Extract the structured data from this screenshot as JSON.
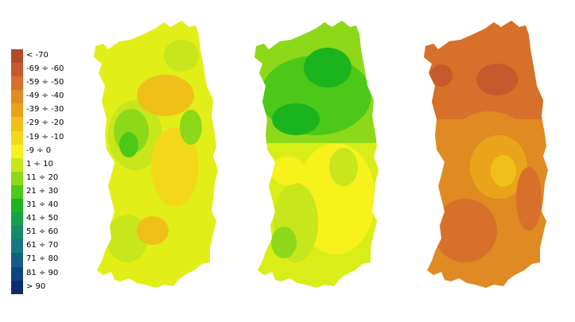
{
  "legend": {
    "items": [
      {
        "label": "< -70",
        "color": "#b34a2a"
      },
      {
        "label": "-69 ÷ -60",
        "color": "#c65a2c"
      },
      {
        "label": "-59 ÷ -50",
        "color": "#d6702a"
      },
      {
        "label": "-49 ÷ -40",
        "color": "#e08a22"
      },
      {
        "label": "-39 ÷ -30",
        "color": "#e9a41c"
      },
      {
        "label": "-29 ÷ -20",
        "color": "#efc01a"
      },
      {
        "label": "-19 ÷ -10",
        "color": "#f3d81a"
      },
      {
        "label": "-9 ÷ 0",
        "color": "#f7f21c"
      },
      {
        "label": "1 ÷ 10",
        "color": "#c8e61c"
      },
      {
        "label": "11 ÷ 20",
        "color": "#8ed81a"
      },
      {
        "label": "21 ÷ 30",
        "color": "#4cc818"
      },
      {
        "label": "31 ÷ 40",
        "color": "#1cb41e"
      },
      {
        "label": "41 ÷ 50",
        "color": "#18a048"
      },
      {
        "label": "51 ÷ 60",
        "color": "#168a6a"
      },
      {
        "label": "61 ÷ 70",
        "color": "#167880"
      },
      {
        "label": "71 ÷ 80",
        "color": "#145e82"
      },
      {
        "label": "81 ÷ 90",
        "color": "#10447e"
      },
      {
        "label": "> 90",
        "color": "#0c2a6e"
      }
    ]
  },
  "maps": [
    {
      "base": "#e2ee18",
      "patches": [
        "#c8e61c",
        "#8ed81a",
        "#4cc818",
        "#efc01a",
        "#f3d81a"
      ]
    },
    {
      "base": "#d9ee18",
      "patches": [
        "#8ed81a",
        "#4cc818",
        "#1cb41e",
        "#c8e61c",
        "#f7f21c"
      ]
    },
    {
      "base": "#df8a22",
      "patches": [
        "#d6702a",
        "#e9a41c",
        "#efc01a",
        "#c65a2c",
        "#e08a22"
      ]
    }
  ]
}
